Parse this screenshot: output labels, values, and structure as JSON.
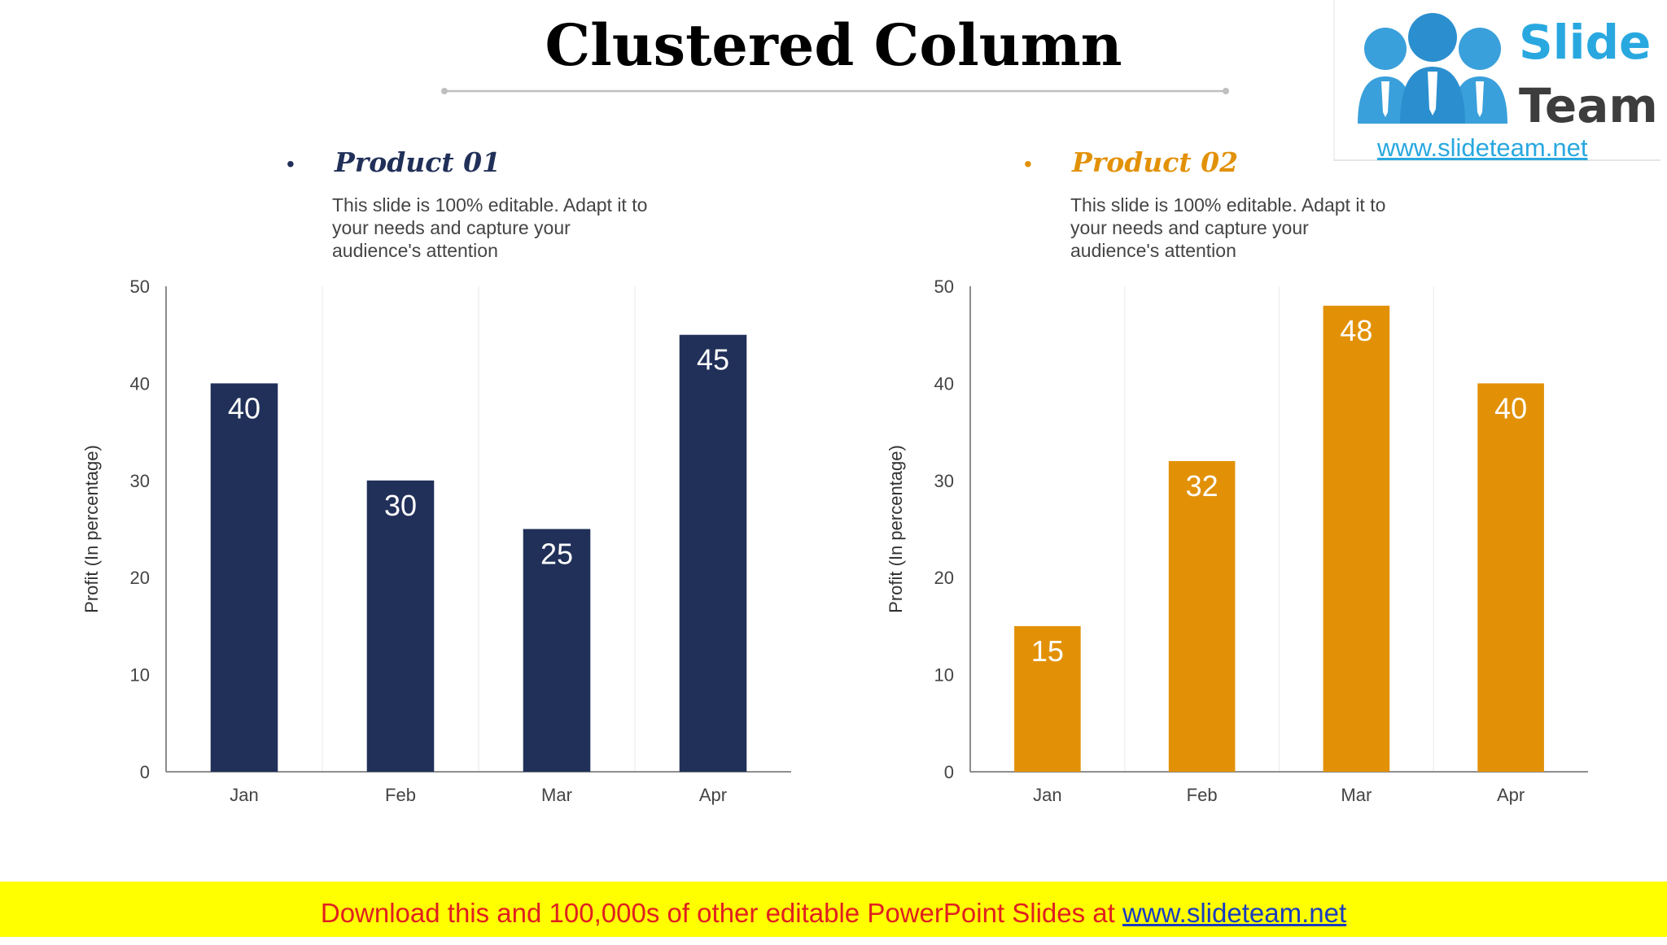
{
  "slide": {
    "title": "Clustered Column"
  },
  "logo": {
    "line1": "Slide",
    "line2": "Team",
    "url": "www.slideteam.net"
  },
  "products": [
    {
      "name": "Product 01",
      "description": "This slide is 100% editable. Adapt it to your needs and capture your audience's attention",
      "color": "#213059"
    },
    {
      "name": "Product 02",
      "description": "This slide is 100% editable. Adapt it to your needs and capture your audience's attention",
      "color": "#e29107"
    }
  ],
  "footer": {
    "text": "Download this and 100,000s of other editable PowerPoint Slides at ",
    "link": "www.slideteam.net"
  },
  "chart_data": [
    {
      "type": "bar",
      "title": "",
      "categories": [
        "Jan",
        "Feb",
        "Mar",
        "Apr"
      ],
      "series": [
        {
          "values": [
            40,
            30,
            25,
            45
          ]
        }
      ],
      "ylabel": "Profit  (In percentage)",
      "xlabel": "",
      "ylim": [
        0,
        50
      ],
      "yticks": [
        0,
        10,
        20,
        30,
        40,
        50
      ],
      "data_labels": true,
      "color": "#213059"
    },
    {
      "type": "bar",
      "title": "",
      "categories": [
        "Jan",
        "Feb",
        "Mar",
        "Apr"
      ],
      "series": [
        {
          "values": [
            15,
            32,
            48,
            40
          ]
        }
      ],
      "ylabel": "Profit  (In percentage)",
      "xlabel": "",
      "ylim": [
        0,
        50
      ],
      "yticks": [
        0,
        10,
        20,
        30,
        40,
        50
      ],
      "data_labels": true,
      "color": "#e29107"
    }
  ]
}
